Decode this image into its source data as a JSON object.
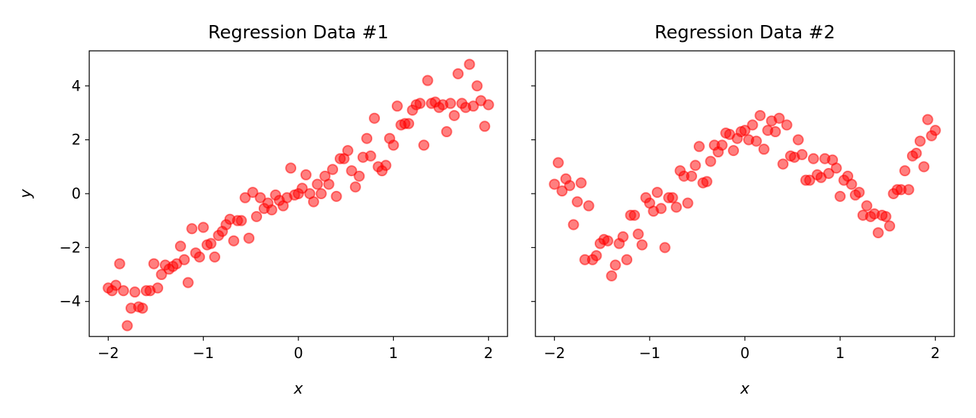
{
  "chart_data": [
    {
      "type": "scatter",
      "title": "Regression Data #1",
      "xlabel": "x",
      "ylabel": "y",
      "xlim": [
        -2.2,
        2.2
      ],
      "ylim": [
        -5.3,
        5.3
      ],
      "xticks": [
        -2,
        -1,
        0,
        1,
        2
      ],
      "yticks": [
        -4,
        -2,
        0,
        2,
        4
      ],
      "marker_color": "#ff0000",
      "marker_alpha": 0.5,
      "grid": false,
      "x": [
        -2.0,
        -1.96,
        -1.92,
        -1.88,
        -1.84,
        -1.8,
        -1.76,
        -1.72,
        -1.68,
        -1.64,
        -1.6,
        -1.56,
        -1.52,
        -1.48,
        -1.44,
        -1.4,
        -1.36,
        -1.32,
        -1.28,
        -1.24,
        -1.2,
        -1.16,
        -1.12,
        -1.08,
        -1.04,
        -1.0,
        -0.96,
        -0.92,
        -0.88,
        -0.84,
        -0.8,
        -0.76,
        -0.72,
        -0.68,
        -0.64,
        -0.6,
        -0.56,
        -0.52,
        -0.48,
        -0.44,
        -0.4,
        -0.36,
        -0.32,
        -0.28,
        -0.24,
        -0.2,
        -0.16,
        -0.12,
        -0.08,
        -0.04,
        0.0,
        0.04,
        0.08,
        0.12,
        0.16,
        0.2,
        0.24,
        0.28,
        0.32,
        0.36,
        0.4,
        0.44,
        0.48,
        0.52,
        0.56,
        0.6,
        0.64,
        0.68,
        0.72,
        0.76,
        0.8,
        0.84,
        0.88,
        0.92,
        0.96,
        1.0,
        1.04,
        1.08,
        1.12,
        1.16,
        1.2,
        1.24,
        1.28,
        1.32,
        1.36,
        1.4,
        1.44,
        1.48,
        1.52,
        1.56,
        1.6,
        1.64,
        1.68,
        1.72,
        1.76,
        1.8,
        1.84,
        1.88,
        1.92,
        1.96,
        2.0
      ],
      "y": [
        -3.5,
        -3.6,
        -3.4,
        -2.6,
        -3.6,
        -4.9,
        -4.25,
        -3.65,
        -4.2,
        -4.25,
        -3.6,
        -3.6,
        -2.6,
        -3.5,
        -3.0,
        -2.65,
        -2.8,
        -2.7,
        -2.6,
        -1.95,
        -2.45,
        -3.3,
        -1.3,
        -2.2,
        -2.35,
        -1.25,
        -1.9,
        -1.85,
        -2.35,
        -1.55,
        -1.4,
        -1.15,
        -0.95,
        -1.75,
        -1.0,
        -1.0,
        -0.15,
        -1.65,
        0.05,
        -0.85,
        -0.15,
        -0.55,
        -0.35,
        -0.6,
        -0.05,
        -0.25,
        -0.45,
        -0.15,
        0.95,
        -0.05,
        0.0,
        0.2,
        0.7,
        0.0,
        -0.3,
        0.35,
        0.0,
        0.65,
        0.35,
        0.9,
        -0.1,
        1.3,
        1.3,
        1.6,
        0.85,
        0.25,
        0.65,
        1.35,
        2.05,
        1.4,
        2.8,
        1.0,
        0.85,
        1.05,
        2.05,
        1.8,
        3.25,
        2.55,
        2.6,
        2.6,
        3.1,
        3.3,
        3.35,
        1.8,
        4.2,
        3.35,
        3.4,
        3.2,
        3.3,
        2.3,
        3.35,
        2.9,
        4.45,
        3.35,
        3.2,
        4.8,
        3.25,
        4.0,
        3.45,
        2.5,
        3.3
      ]
    },
    {
      "type": "scatter",
      "title": "Regression Data #2",
      "xlabel": "x",
      "ylabel": "",
      "xlim": [
        -2.2,
        2.2
      ],
      "ylim": [
        -5.3,
        5.3
      ],
      "xticks": [
        -2,
        -1,
        0,
        1,
        2
      ],
      "yticks": [
        -4,
        -2,
        0,
        2,
        4
      ],
      "marker_color": "#ff0000",
      "marker_alpha": 0.5,
      "grid": false,
      "x": [
        -2.0,
        -1.96,
        -1.92,
        -1.88,
        -1.84,
        -1.8,
        -1.76,
        -1.72,
        -1.68,
        -1.64,
        -1.6,
        -1.56,
        -1.52,
        -1.48,
        -1.44,
        -1.4,
        -1.36,
        -1.32,
        -1.28,
        -1.24,
        -1.2,
        -1.16,
        -1.12,
        -1.08,
        -1.04,
        -1.0,
        -0.96,
        -0.92,
        -0.88,
        -0.84,
        -0.8,
        -0.76,
        -0.72,
        -0.68,
        -0.64,
        -0.6,
        -0.56,
        -0.52,
        -0.48,
        -0.44,
        -0.4,
        -0.36,
        -0.32,
        -0.28,
        -0.24,
        -0.2,
        -0.16,
        -0.12,
        -0.08,
        -0.04,
        0.0,
        0.04,
        0.08,
        0.12,
        0.16,
        0.2,
        0.24,
        0.28,
        0.32,
        0.36,
        0.4,
        0.44,
        0.48,
        0.52,
        0.56,
        0.6,
        0.64,
        0.68,
        0.72,
        0.76,
        0.8,
        0.84,
        0.88,
        0.92,
        0.96,
        1.0,
        1.04,
        1.08,
        1.12,
        1.16,
        1.2,
        1.24,
        1.28,
        1.32,
        1.36,
        1.4,
        1.44,
        1.48,
        1.52,
        1.56,
        1.6,
        1.64,
        1.68,
        1.72,
        1.76,
        1.8,
        1.84,
        1.88,
        1.92,
        1.96,
        2.0
      ],
      "y": [
        0.35,
        1.15,
        0.1,
        0.55,
        0.3,
        -1.15,
        -0.3,
        0.4,
        -2.45,
        -0.45,
        -2.45,
        -2.3,
        -1.85,
        -1.7,
        -1.75,
        -3.05,
        -2.65,
        -1.85,
        -1.6,
        -2.45,
        -0.8,
        -0.8,
        -1.5,
        -1.9,
        -0.15,
        -0.35,
        -0.65,
        0.05,
        -0.55,
        -2.0,
        -0.15,
        -0.15,
        -0.5,
        0.85,
        0.65,
        -0.35,
        0.65,
        1.05,
        1.75,
        0.4,
        0.45,
        1.2,
        1.8,
        1.55,
        1.8,
        2.25,
        2.2,
        1.6,
        2.05,
        2.3,
        2.35,
        2.0,
        2.55,
        1.95,
        2.9,
        1.65,
        2.35,
        2.7,
        2.3,
        2.8,
        1.1,
        2.55,
        1.4,
        1.35,
        2.0,
        1.45,
        0.5,
        0.5,
        1.3,
        0.7,
        0.6,
        1.3,
        0.75,
        1.25,
        0.95,
        -0.1,
        0.5,
        0.65,
        0.35,
        -0.05,
        0.05,
        -0.8,
        -0.45,
        -0.85,
        -0.75,
        -1.45,
        -0.8,
        -0.85,
        -1.2,
        0.0,
        0.15,
        0.15,
        0.85,
        0.15,
        1.4,
        1.5,
        1.95,
        1.0,
        2.75,
        2.15,
        2.35
      ]
    }
  ]
}
